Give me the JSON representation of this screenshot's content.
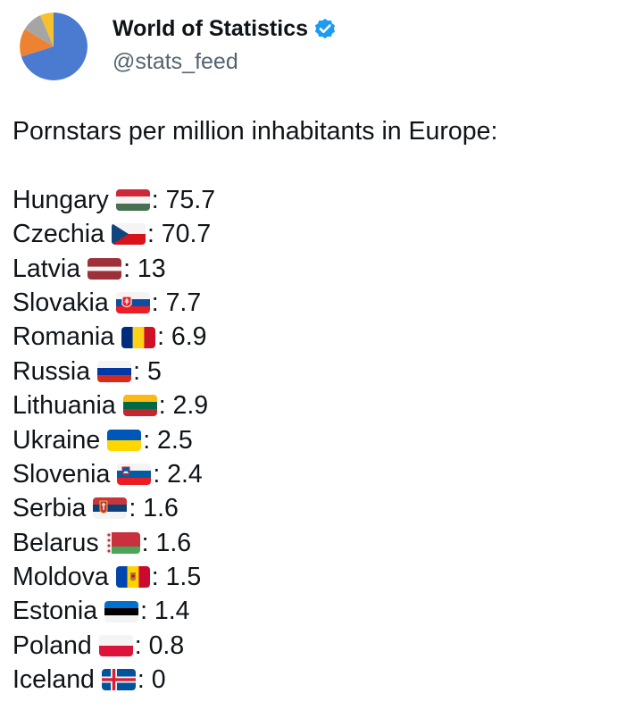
{
  "account": {
    "name": "World of Statistics",
    "handle": "@stats_feed"
  },
  "tweet": {
    "intro": "Pornstars per million inhabitants in Europe:",
    "rows": [
      {
        "country": "Hungary",
        "flag": "hungary-flag-icon",
        "value": ": 75.7"
      },
      {
        "country": "Czechia",
        "flag": "czechia-flag-icon",
        "value": ": 70.7"
      },
      {
        "country": "Latvia",
        "flag": "latvia-flag-icon",
        "value": ": 13"
      },
      {
        "country": "Slovakia",
        "flag": "slovakia-flag-icon",
        "value": ": 7.7"
      },
      {
        "country": "Romania",
        "flag": "romania-flag-icon",
        "value": ": 6.9"
      },
      {
        "country": "Russia",
        "flag": "russia-flag-icon",
        "value": ": 5"
      },
      {
        "country": "Lithuania",
        "flag": "lithuania-flag-icon",
        "value": ": 2.9"
      },
      {
        "country": "Ukraine",
        "flag": "ukraine-flag-icon",
        "value": ": 2.5"
      },
      {
        "country": "Slovenia",
        "flag": "slovenia-flag-icon",
        "value": ": 2.4"
      },
      {
        "country": "Serbia",
        "flag": "serbia-flag-icon",
        "value": ": 1.6"
      },
      {
        "country": "Belarus",
        "flag": "belarus-flag-icon",
        "value": ": 1.6"
      },
      {
        "country": "Moldova",
        "flag": "moldova-flag-icon",
        "value": ": 1.5"
      },
      {
        "country": "Estonia",
        "flag": "estonia-flag-icon",
        "value": ": 1.4"
      },
      {
        "country": "Poland",
        "flag": "poland-flag-icon",
        "value": ": 0.8"
      },
      {
        "country": "Iceland",
        "flag": "iceland-flag-icon",
        "value": ": 0"
      }
    ]
  },
  "icons": {
    "avatar": "pie-chart-avatar-icon",
    "verified": "verified-badge-icon"
  },
  "colors": {
    "text": "#0f1419",
    "handle": "#536471",
    "verified": "#1d9bf0"
  }
}
